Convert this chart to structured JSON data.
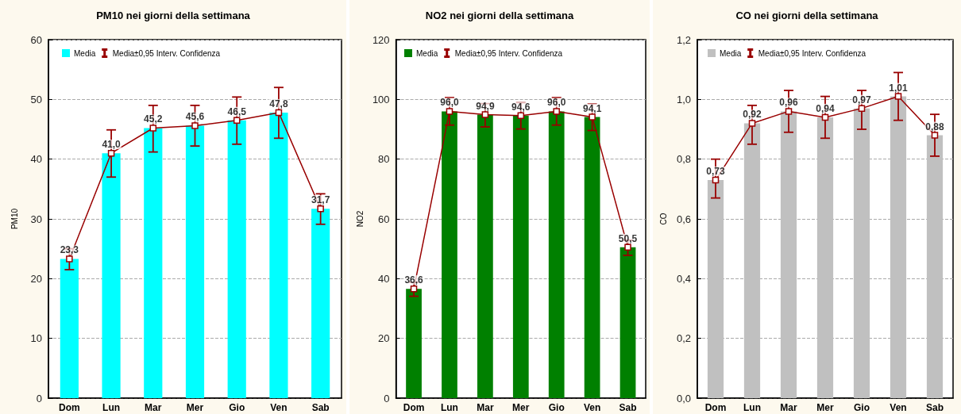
{
  "chart_data": [
    {
      "type": "bar",
      "title": "PM10 nei giorni della settimana",
      "ylabel": "PM10",
      "categories": [
        "Dom",
        "Lun",
        "Mar",
        "Mer",
        "Gio",
        "Ven",
        "Sab"
      ],
      "series": [
        {
          "name": "Media",
          "color": "#00ffff",
          "values": [
            23.3,
            41.0,
            45.2,
            45.6,
            46.5,
            47.8,
            31.7
          ],
          "value_labels": [
            "23,3",
            "41,0",
            "45,2",
            "45,6",
            "46,5",
            "47,8",
            "31,7"
          ]
        },
        {
          "type": "line",
          "name": "Media±0,95 Interv. Confidenza",
          "color": "#990000",
          "values": [
            23.3,
            41.0,
            45.2,
            45.6,
            46.5,
            47.8,
            31.7
          ],
          "errors": [
            [
              21.5,
              25.0
            ],
            [
              37.0,
              44.9
            ],
            [
              41.2,
              49.0
            ],
            [
              42.2,
              49.0
            ],
            [
              42.5,
              50.4
            ],
            [
              43.5,
              52.0
            ],
            [
              29.1,
              34.2
            ]
          ]
        }
      ],
      "ylim": [
        0,
        60
      ],
      "yticks": [
        0,
        10,
        20,
        30,
        40,
        50,
        60
      ],
      "grid": "y",
      "legend": "top left",
      "marker": "square",
      "line_style": "solid"
    },
    {
      "type": "bar",
      "title": "NO2 nei giorni della settimana",
      "ylabel": "NO2",
      "categories": [
        "Dom",
        "Lun",
        "Mar",
        "Mer",
        "Gio",
        "Ven",
        "Sab"
      ],
      "series": [
        {
          "name": "Media",
          "color": "#008000",
          "values": [
            36.6,
            96.0,
            94.9,
            94.6,
            96.0,
            94.1,
            50.5
          ],
          "value_labels": [
            "36,6",
            "96,0",
            "94,9",
            "94,6",
            "96,0",
            "94,1",
            "50,5"
          ]
        },
        {
          "type": "line",
          "name": "Media±0,95 Interv. Confidenza",
          "color": "#990000",
          "values": [
            36.6,
            96.0,
            94.9,
            94.6,
            96.0,
            94.1,
            50.5
          ],
          "errors": [
            [
              34.1,
              38.8
            ],
            [
              91.4,
              100.6
            ],
            [
              90.8,
              98.6
            ],
            [
              90.1,
              98.9
            ],
            [
              91.4,
              100.6
            ],
            [
              89.6,
              98.5
            ],
            [
              47.8,
              52.9
            ]
          ]
        }
      ],
      "ylim": [
        0,
        120
      ],
      "yticks": [
        0,
        20,
        40,
        60,
        80,
        100,
        120
      ],
      "grid": "y",
      "legend": "top left",
      "marker": "square",
      "line_style": "solid"
    },
    {
      "type": "bar",
      "title": "CO nei giorni della settimana",
      "ylabel": "CO",
      "categories": [
        "Dom",
        "Lun",
        "Mar",
        "Mer",
        "Gio",
        "Ven",
        "Sab"
      ],
      "series": [
        {
          "name": "Media",
          "color": "#c0c0c0",
          "values": [
            0.73,
            0.92,
            0.96,
            0.94,
            0.97,
            1.01,
            0.88
          ],
          "value_labels": [
            "0,73",
            "0,92",
            "0,96",
            "0,94",
            "0,97",
            "1,01",
            "0,88"
          ]
        },
        {
          "type": "line",
          "name": "Media±0,95 Interv. Confidenza",
          "color": "#990000",
          "values": [
            0.73,
            0.92,
            0.96,
            0.94,
            0.97,
            1.01,
            0.88
          ],
          "errors": [
            [
              0.67,
              0.8
            ],
            [
              0.85,
              0.98
            ],
            [
              0.89,
              1.03
            ],
            [
              0.87,
              1.01
            ],
            [
              0.9,
              1.03
            ],
            [
              0.93,
              1.09
            ],
            [
              0.81,
              0.95
            ]
          ]
        }
      ],
      "ylim": [
        0,
        1.2
      ],
      "yticks": [
        {
          "value": 0,
          "label": "0,0"
        },
        {
          "value": 0.2,
          "label": "0,2"
        },
        {
          "value": 0.4,
          "label": "0,4"
        },
        {
          "value": 0.6,
          "label": "0,6"
        },
        {
          "value": 0.8,
          "label": "0,8"
        },
        {
          "value": 1.0,
          "label": "1,0"
        },
        {
          "value": 1.2,
          "label": "1,2"
        }
      ],
      "grid": "y",
      "legend": "top left",
      "marker": "square",
      "line_style": "solid"
    }
  ]
}
